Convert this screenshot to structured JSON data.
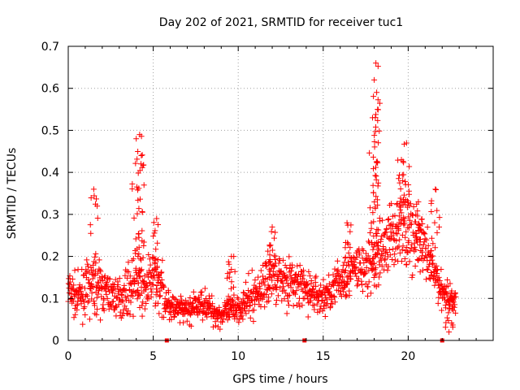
{
  "chart_data": {
    "type": "scatter",
    "title": "Day 202 of 2021, SRMTID for receiver tuc1",
    "xlabel": "GPS time / hours",
    "ylabel": "SRMTID / TECUs",
    "xlim": [
      0,
      25
    ],
    "ylim": [
      0,
      0.7
    ],
    "x_ticks": [
      "0",
      "5",
      "10",
      "15",
      "20"
    ],
    "y_ticks": [
      "0",
      "0.1",
      "0.2",
      "0.3",
      "0.4",
      "0.5",
      "0.6",
      "0.7"
    ],
    "grid": true,
    "marker": "+",
    "color": "#ff0000",
    "gap_markers_hours": [
      5.8,
      13.9,
      22.0
    ],
    "series": [
      {
        "name": "tuc1",
        "profile": {
          "hours": [
            0.0,
            0.5,
            1.0,
            1.5,
            2.0,
            2.5,
            3.0,
            3.5,
            4.0,
            4.5,
            5.0,
            5.5,
            6.0,
            6.5,
            7.0,
            7.5,
            8.0,
            8.5,
            9.0,
            9.5,
            10.0,
            10.5,
            11.0,
            11.5,
            12.0,
            12.5,
            13.0,
            13.5,
            14.0,
            14.5,
            15.0,
            15.5,
            16.0,
            16.5,
            17.0,
            17.5,
            18.0,
            18.5,
            19.0,
            19.5,
            20.0,
            20.5,
            21.0,
            21.5,
            22.0,
            22.5,
            22.8
          ],
          "median": [
            0.12,
            0.1,
            0.12,
            0.13,
            0.12,
            0.11,
            0.1,
            0.12,
            0.14,
            0.12,
            0.15,
            0.12,
            0.08,
            0.07,
            0.07,
            0.08,
            0.09,
            0.07,
            0.06,
            0.07,
            0.08,
            0.09,
            0.11,
            0.13,
            0.16,
            0.15,
            0.14,
            0.13,
            0.12,
            0.11,
            0.1,
            0.12,
            0.14,
            0.16,
            0.17,
            0.17,
            0.18,
            0.22,
            0.25,
            0.27,
            0.26,
            0.24,
            0.2,
            0.16,
            0.12,
            0.1,
            0.1
          ],
          "spread": [
            0.05,
            0.04,
            0.05,
            0.06,
            0.05,
            0.04,
            0.04,
            0.05,
            0.06,
            0.06,
            0.06,
            0.05,
            0.03,
            0.03,
            0.03,
            0.03,
            0.03,
            0.03,
            0.03,
            0.03,
            0.03,
            0.04,
            0.05,
            0.05,
            0.06,
            0.06,
            0.05,
            0.05,
            0.05,
            0.04,
            0.04,
            0.04,
            0.05,
            0.05,
            0.06,
            0.06,
            0.07,
            0.07,
            0.07,
            0.08,
            0.08,
            0.07,
            0.06,
            0.05,
            0.04,
            0.03,
            0.03
          ]
        },
        "peaks": [
          {
            "x": 1.5,
            "y": 0.36
          },
          {
            "x": 4.0,
            "y": 0.48
          },
          {
            "x": 4.2,
            "y": 0.49
          },
          {
            "x": 4.3,
            "y": 0.44
          },
          {
            "x": 5.2,
            "y": 0.29
          },
          {
            "x": 9.6,
            "y": 0.2
          },
          {
            "x": 12.0,
            "y": 0.27
          },
          {
            "x": 16.4,
            "y": 0.28
          },
          {
            "x": 17.9,
            "y": 0.53
          },
          {
            "x": 18.0,
            "y": 0.62
          },
          {
            "x": 18.1,
            "y": 0.66
          },
          {
            "x": 18.2,
            "y": 0.55
          },
          {
            "x": 19.6,
            "y": 0.43
          },
          {
            "x": 19.9,
            "y": 0.47
          },
          {
            "x": 20.6,
            "y": 0.33
          },
          {
            "x": 21.6,
            "y": 0.36
          },
          {
            "x": 22.4,
            "y": 0.02
          }
        ]
      }
    ]
  }
}
